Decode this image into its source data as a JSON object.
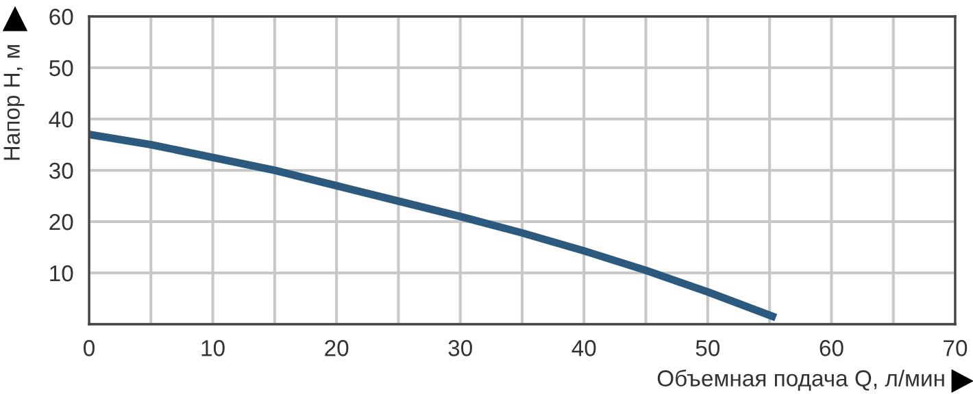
{
  "chart_data": {
    "type": "line",
    "xlabel": "Объемная подача Q, л/мин",
    "ylabel": "Напор H, м",
    "x": [
      0,
      5,
      10,
      15,
      20,
      25,
      30,
      35,
      40,
      45,
      50,
      55.5
    ],
    "series": [
      {
        "color": "#2b5a7e",
        "values": [
          37,
          35,
          32.5,
          30,
          27,
          24,
          21,
          17.8,
          14.3,
          10.5,
          6.3,
          1.3
        ]
      }
    ],
    "xlim": [
      0,
      70
    ],
    "ylim": [
      0,
      60
    ],
    "xticks": [
      0,
      {
        "value": 5,
        "label": null
      },
      10,
      {
        "value": 15,
        "label": null
      },
      20,
      {
        "value": 25,
        "label": null
      },
      30,
      {
        "value": 35,
        "label": null
      },
      40,
      {
        "value": 45,
        "label": null
      },
      50,
      {
        "value": 55,
        "label": null
      },
      60,
      {
        "value": 65,
        "label": null
      },
      70
    ],
    "yticks": [
      {
        "value": 0,
        "label": null
      },
      10,
      20,
      30,
      40,
      50,
      60
    ],
    "grid": true,
    "marker": "none",
    "line_style": "solid",
    "legend": false
  }
}
